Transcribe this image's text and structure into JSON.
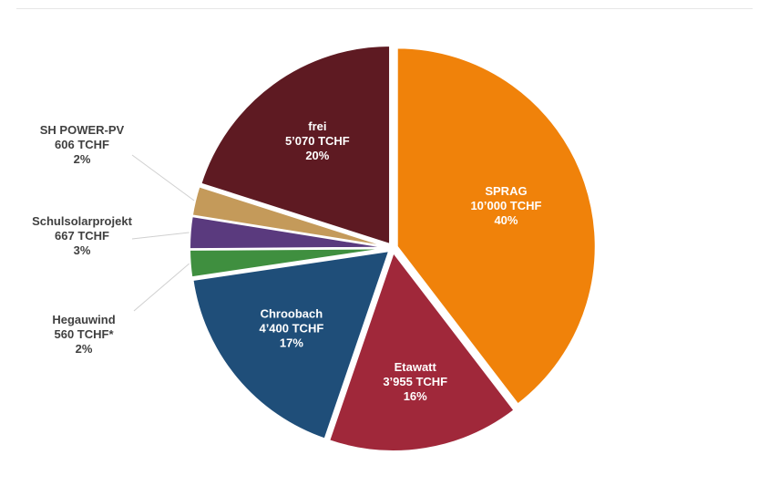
{
  "chart_data": {
    "type": "pie",
    "title": "",
    "slices": [
      {
        "name": "SPRAG",
        "amount": "10’000 TCHF",
        "percent": "40%",
        "value": 10000,
        "color": "#f0820a",
        "label_style": "inside"
      },
      {
        "name": "Etawatt",
        "amount": "3’955 TCHF",
        "percent": "16%",
        "value": 3955,
        "color": "#a0283a",
        "label_style": "inside"
      },
      {
        "name": "Chroobach",
        "amount": "4’400 TCHF",
        "percent": "17%",
        "value": 4400,
        "color": "#1f4e79",
        "label_style": "inside"
      },
      {
        "name": "Hegauwind",
        "amount": "560 TCHF*",
        "percent": "2%",
        "value": 560,
        "color": "#3f8f3f",
        "label_style": "outside"
      },
      {
        "name": "Schulsolarprojekt",
        "amount": "667 TCHF",
        "percent": "3%",
        "value": 667,
        "color": "#5a3a7e",
        "label_style": "outside"
      },
      {
        "name": "SH POWER-PV",
        "amount": "606 TCHF",
        "percent": "2%",
        "value": 606,
        "color": "#c49a5a",
        "label_style": "outside"
      },
      {
        "name": "frei",
        "amount": "5’070 TCHF",
        "percent": "20%",
        "value": 5070,
        "color": "#5e1a22",
        "label_style": "inside"
      }
    ]
  }
}
